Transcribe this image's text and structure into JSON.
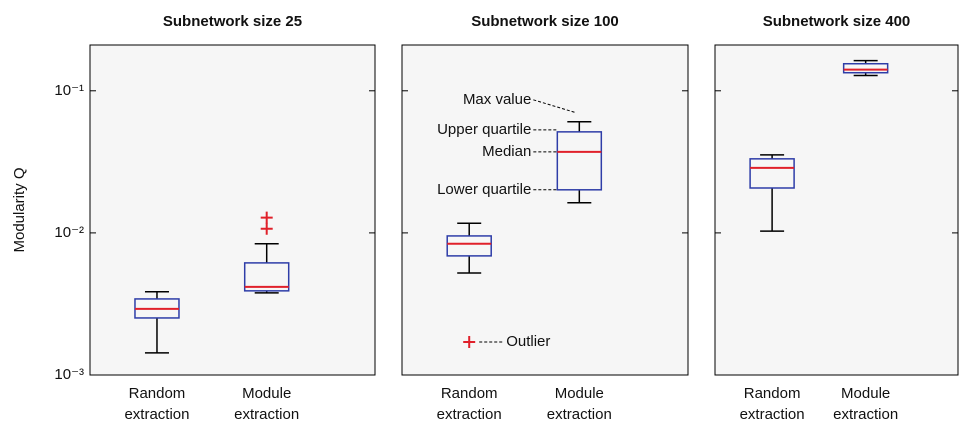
{
  "chart_data": [
    {
      "type": "box",
      "title": "Subnetwork size 25",
      "ylabel": "Modularity Q",
      "yscale": "log",
      "ylim": [
        0.001,
        0.21
      ],
      "yticks": [
        {
          "value": 0.001,
          "label": "10⁻³"
        },
        {
          "value": 0.01,
          "label": "10⁻²"
        },
        {
          "value": 0.1,
          "label": "10⁻¹"
        }
      ],
      "categories": [
        "Random extraction",
        "Module extraction"
      ],
      "box_color": "#2e3da8",
      "median_color": "#e0202a",
      "flier_color": "#e0202a",
      "boxes": [
        {
          "whislo": 0.00143,
          "q1": 0.00252,
          "med": 0.00292,
          "q3": 0.00343,
          "whishi": 0.00385,
          "fliers": []
        },
        {
          "whislo": 0.00378,
          "q1": 0.00391,
          "med": 0.00417,
          "q3": 0.00615,
          "whishi": 0.00838,
          "fliers": [
            0.0107,
            0.0128
          ]
        }
      ]
    },
    {
      "type": "box",
      "title": "Subnetwork size 100",
      "yscale": "log",
      "ylim": [
        0.001,
        0.21
      ],
      "yticks": [
        0.001,
        0.01,
        0.1
      ],
      "categories": [
        "Random extraction",
        "Module extraction"
      ],
      "box_color": "#2e3da8",
      "median_color": "#e0202a",
      "flier_color": "#e0202a",
      "boxes": [
        {
          "whislo": 0.00522,
          "q1": 0.00689,
          "med": 0.00838,
          "q3": 0.00952,
          "whishi": 0.0117,
          "fliers": []
        },
        {
          "whislo": 0.0163,
          "q1": 0.0201,
          "med": 0.0372,
          "q3": 0.0514,
          "whishi": 0.0605,
          "fliers": []
        }
      ],
      "annotations": [
        "Max value",
        "Upper quartile",
        "Median",
        "Lower quartile",
        "Outlier"
      ]
    },
    {
      "type": "box",
      "title": "Subnetwork size 400",
      "yscale": "log",
      "ylim": [
        0.001,
        0.21
      ],
      "yticks": [
        0.001,
        0.01,
        0.1
      ],
      "categories": [
        "Random extraction",
        "Module extraction"
      ],
      "box_color": "#2e3da8",
      "median_color": "#e0202a",
      "flier_color": "#e0202a",
      "boxes": [
        {
          "whislo": 0.0103,
          "q1": 0.0207,
          "med": 0.0287,
          "q3": 0.0332,
          "whishi": 0.0354,
          "fliers": []
        },
        {
          "whislo": 0.128,
          "q1": 0.134,
          "med": 0.141,
          "q3": 0.155,
          "whishi": 0.163,
          "fliers": []
        }
      ]
    }
  ]
}
